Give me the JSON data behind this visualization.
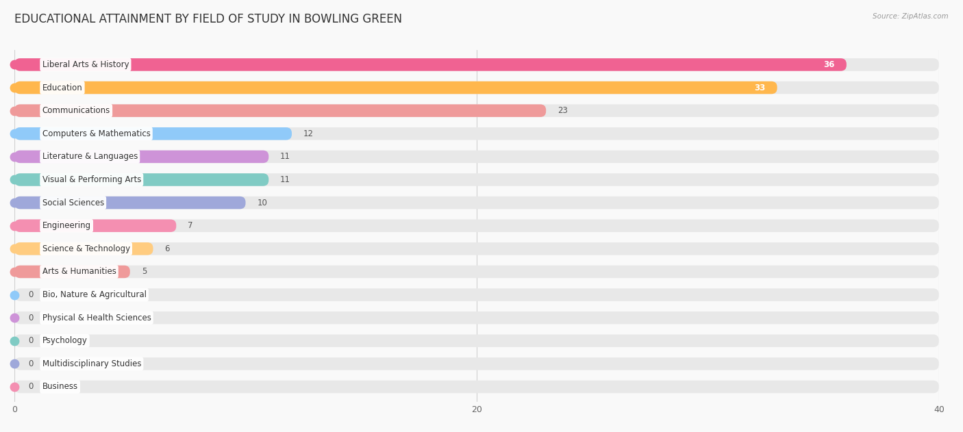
{
  "title": "EDUCATIONAL ATTAINMENT BY FIELD OF STUDY IN BOWLING GREEN",
  "source": "Source: ZipAtlas.com",
  "categories": [
    "Liberal Arts & History",
    "Education",
    "Communications",
    "Computers & Mathematics",
    "Literature & Languages",
    "Visual & Performing Arts",
    "Social Sciences",
    "Engineering",
    "Science & Technology",
    "Arts & Humanities",
    "Bio, Nature & Agricultural",
    "Physical & Health Sciences",
    "Psychology",
    "Multidisciplinary Studies",
    "Business"
  ],
  "values": [
    36,
    33,
    23,
    12,
    11,
    11,
    10,
    7,
    6,
    5,
    0,
    0,
    0,
    0,
    0
  ],
  "bar_colors": [
    "#F06292",
    "#FFB74D",
    "#EF9A9A",
    "#90CAF9",
    "#CE93D8",
    "#80CBC4",
    "#9FA8DA",
    "#F48FB1",
    "#FFCC80",
    "#EF9A9A",
    "#90CAF9",
    "#CE93D8",
    "#80CBC4",
    "#9FA8DA",
    "#F48FB1"
  ],
  "xlim": [
    0,
    40
  ],
  "background_color": "#f9f9f9",
  "bar_background_color": "#e8e8e8",
  "title_fontsize": 12,
  "label_fontsize": 8.5,
  "value_fontsize": 8.5,
  "grid_color": "#d0d0d0"
}
